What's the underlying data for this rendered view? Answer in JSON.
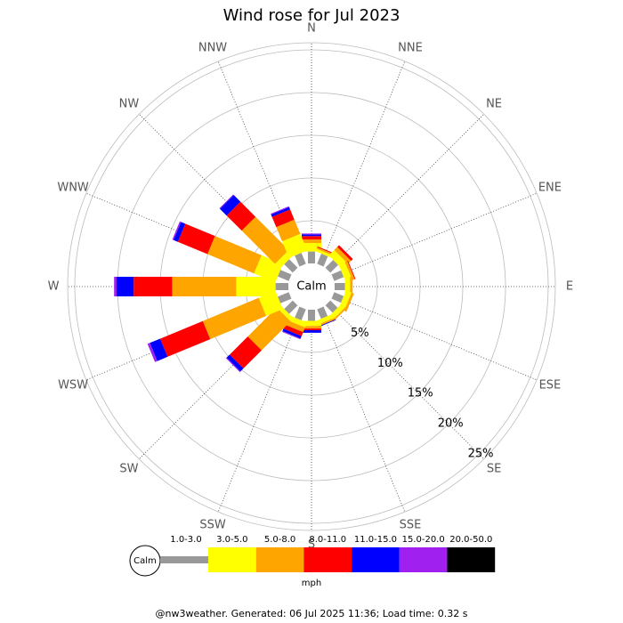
{
  "chart_data": {
    "type": "windrose",
    "title": "Wind rose for Jul 2023",
    "categories": [
      "N",
      "NNE",
      "NE",
      "ENE",
      "E",
      "ESE",
      "SE",
      "SSE",
      "S",
      "SSW",
      "SW",
      "WSW",
      "W",
      "WNW",
      "NW",
      "NNW"
    ],
    "center_label": "Calm",
    "rlim": [
      0,
      25
    ],
    "rticks": [
      {
        "value": 5,
        "label": "5%"
      },
      {
        "value": 10,
        "label": "10%"
      },
      {
        "value": 15,
        "label": "15%"
      },
      {
        "value": 20,
        "label": "20%"
      },
      {
        "value": 25,
        "label": "25%"
      }
    ],
    "series": [
      {
        "name": "1.0-3.0",
        "color": "#999999",
        "values": [
          1.4,
          1.3,
          1.3,
          1.2,
          1.2,
          1.2,
          1.2,
          1.2,
          1.3,
          1.4,
          1.4,
          1.4,
          1.5,
          1.4,
          1.4,
          1.4
        ]
      },
      {
        "name": "3.0-5.0",
        "color": "#ffff00",
        "values": [
          1.0,
          0.3,
          0.9,
          0.8,
          0.6,
          0.7,
          0.6,
          0.5,
          0.6,
          0.6,
          0.5,
          2.1,
          4.6,
          2.7,
          0.8,
          2.1
        ]
      },
      {
        "name": "5.0-8.0",
        "color": "#ffa500",
        "values": [
          0.4,
          0.2,
          0.5,
          0.3,
          0.3,
          0.3,
          0.2,
          0.2,
          0.3,
          0.6,
          4.8,
          7.1,
          7.5,
          5.9,
          5.5,
          1.8
        ]
      },
      {
        "name": "8.0-11.0",
        "color": "#ff0000",
        "values": [
          0.4,
          0.1,
          0.3,
          0.1,
          0,
          0,
          0,
          0,
          0.2,
          0.5,
          3.0,
          5.4,
          4.5,
          3.75,
          2.5,
          1.3
        ]
      },
      {
        "name": "11.0-15.0",
        "color": "#0000ff",
        "values": [
          0.2,
          0,
          0,
          0,
          0,
          0,
          0,
          0.1,
          0.3,
          0.3,
          0.5,
          1.3,
          2.0,
          0.55,
          1.1,
          0.3
        ]
      },
      {
        "name": "15.0-20.0",
        "color": "#a020f0",
        "values": [
          0.1,
          0,
          0,
          0,
          0,
          0,
          0,
          0,
          0,
          0.1,
          0.1,
          0.3,
          0.3,
          0.15,
          0.1,
          0.1
        ]
      },
      {
        "name": "20.0-50.0",
        "color": "#000000",
        "values": [
          0,
          0,
          0,
          0,
          0,
          0,
          0,
          0,
          0,
          0,
          0,
          0,
          0,
          0,
          0,
          0
        ]
      }
    ],
    "legend_unit": "mph",
    "footer": "@nw3weather.  Generated: 06 Jul 2025 11:36; Load time: 0.32 s"
  }
}
